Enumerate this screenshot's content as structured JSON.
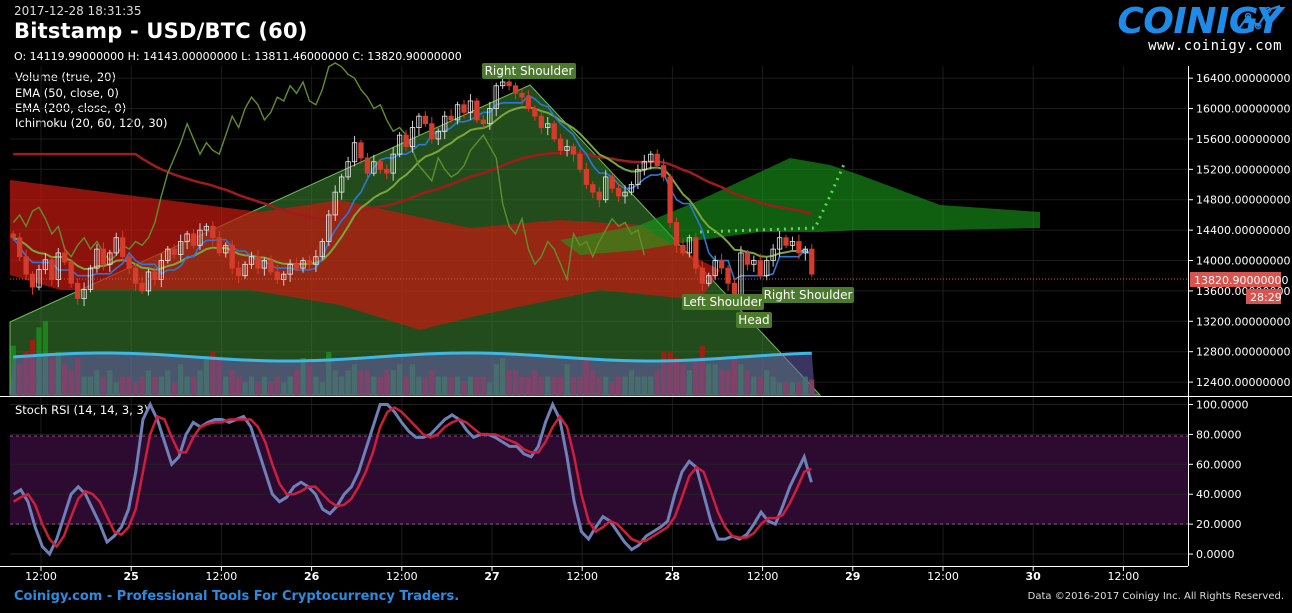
{
  "header": {
    "timestamp": "2017-12-28 18:31:35",
    "title": "Bitstamp - USD/BTC (60)",
    "ohlc": "O: 14119.99000000 H: 14143.00000000 L: 13811.46000000 C: 13820.90000000",
    "indicators": [
      "Volume (true, 20)",
      "EMA (50, close, 0)",
      "EMA (200, close, 0)",
      "Ichimoku (20, 60, 120, 30)"
    ]
  },
  "logo": {
    "text": "COINIGY",
    "url": "www.coinigy.com"
  },
  "footer": {
    "tagline": "Coinigy.com - Professional Tools For Cryptocurrency Traders.",
    "copyright": "Data ©2016-2017 Coinigy Inc. All Rights Reserved."
  },
  "colors": {
    "up": "#2ea84a",
    "down": "#d63c2b",
    "ema50": "#7aa63c",
    "ema200": "#a01c1c",
    "stoch_k": "#6f7fb8",
    "stoch_d": "#cc1f3e",
    "axis_label_price": "#d9534f"
  },
  "chart_data": [
    {
      "type": "candlestick",
      "title": "Bitstamp - USD/BTC (60)",
      "ylim": [
        12230,
        16560
      ],
      "y_ticks": [
        "16400.00000000",
        "16000.00000000",
        "15600.00000000",
        "15200.00000000",
        "14800.00000000",
        "14400.00000000",
        "14000.00000000",
        "13600.00000000",
        "13200.00000000",
        "12800.00000000",
        "12400.00000000"
      ],
      "x_ticks": [
        "12:00",
        "25",
        "12:00",
        "26",
        "12:00",
        "27",
        "12:00",
        "28",
        "12:00",
        "29",
        "12:00",
        "30",
        "12:00"
      ],
      "last_price": "13820.90000000",
      "countdown": "28:29",
      "annotations": [
        "Right Shoulder",
        "Left Shoulder",
        "Head",
        "Right Shoulder"
      ],
      "close": [
        14300,
        14050,
        13820,
        13650,
        13880,
        14010,
        13750,
        14100,
        13980,
        13700,
        13500,
        13620,
        13900,
        14150,
        13950,
        14100,
        14300,
        14050,
        13900,
        13700,
        13600,
        13850,
        13750,
        14000,
        14150,
        14080,
        14250,
        14350,
        14200,
        14400,
        14450,
        14300,
        14100,
        14200,
        13900,
        13800,
        13950,
        14050,
        13900,
        14000,
        13850,
        13750,
        13820,
        13950,
        13900,
        14000,
        13950,
        14050,
        14250,
        14600,
        14900,
        15100,
        15300,
        15550,
        15350,
        15150,
        15300,
        15200,
        15150,
        15400,
        15650,
        15500,
        15750,
        15900,
        15800,
        15600,
        15700,
        15900,
        15850,
        16050,
        15950,
        16100,
        15850,
        15800,
        16000,
        16300,
        16350,
        16300,
        16200,
        16150,
        16000,
        15900,
        15750,
        15800,
        15600,
        15450,
        15500,
        15400,
        15200,
        15000,
        14900,
        14800,
        15100,
        14950,
        14850,
        14900,
        15000,
        15200,
        15300,
        15400,
        15250,
        15100,
        14500,
        14200,
        14100,
        14300,
        13900,
        13700,
        13800,
        14000,
        13900,
        13700,
        13500,
        14100,
        13950,
        14000,
        13800,
        14000,
        14150,
        14300,
        14200,
        14250,
        14100,
        14150,
        13821
      ],
      "volume": [
        800,
        500,
        700,
        900,
        1100,
        1200,
        600,
        700,
        500,
        400,
        600,
        300,
        300,
        400,
        300,
        400,
        200,
        300,
        300,
        200,
        300,
        400,
        300,
        300,
        400,
        200,
        500,
        300,
        300,
        400,
        600,
        700,
        600,
        300,
        400,
        300,
        200,
        300,
        200,
        300,
        200,
        300,
        200,
        300,
        400,
        600,
        500,
        300,
        200,
        700,
        400,
        300,
        400,
        500,
        400,
        400,
        300,
        300,
        400,
        400,
        500,
        300,
        500,
        300,
        300,
        400,
        300,
        300,
        300,
        300,
        200,
        300,
        300,
        300,
        200,
        500,
        600,
        400,
        400,
        300,
        300,
        400,
        300,
        300,
        300,
        300,
        500,
        300,
        300,
        600,
        400,
        300,
        300,
        200,
        300,
        300,
        400,
        300,
        300,
        300,
        400,
        700,
        700,
        600,
        500,
        400,
        600,
        800,
        500,
        500,
        400,
        400,
        600,
        500,
        400,
        300,
        300,
        400,
        300,
        200,
        200,
        200,
        200,
        300,
        250
      ]
    },
    {
      "type": "line",
      "title": "Stoch RSI (14, 14, 3, 3)",
      "ylim": [
        -8,
        103
      ],
      "y_ticks": [
        "100.0000",
        "80.0000",
        "60.0000",
        "40.0000",
        "20.0000",
        "0.0000"
      ],
      "series": [
        {
          "name": "K",
          "values": [
            40,
            43,
            35,
            18,
            5,
            0,
            10,
            25,
            40,
            45,
            40,
            30,
            20,
            8,
            12,
            18,
            30,
            55,
            90,
            100,
            90,
            75,
            60,
            65,
            80,
            88,
            85,
            88,
            90,
            90,
            88,
            90,
            92,
            85,
            70,
            55,
            40,
            35,
            38,
            45,
            48,
            45,
            40,
            30,
            27,
            32,
            40,
            45,
            55,
            70,
            85,
            100,
            100,
            95,
            88,
            82,
            78,
            78,
            80,
            85,
            90,
            93,
            90,
            83,
            78,
            80,
            80,
            78,
            75,
            72,
            72,
            67,
            65,
            72,
            88,
            100,
            90,
            65,
            35,
            15,
            10,
            18,
            25,
            22,
            15,
            8,
            3,
            6,
            12,
            15,
            18,
            22,
            40,
            55,
            62,
            58,
            40,
            22,
            10,
            10,
            12,
            10,
            13,
            20,
            28,
            22,
            20,
            32,
            45,
            55,
            65,
            48
          ]
        },
        {
          "name": "D",
          "values": [
            35,
            38,
            40,
            33,
            20,
            10,
            5,
            12,
            25,
            37,
            42,
            40,
            35,
            25,
            15,
            13,
            18,
            30,
            55,
            80,
            92,
            90,
            78,
            68,
            68,
            78,
            85,
            87,
            88,
            88,
            90,
            90,
            90,
            90,
            85,
            75,
            60,
            47,
            40,
            40,
            42,
            45,
            45,
            40,
            35,
            32,
            33,
            37,
            45,
            55,
            68,
            85,
            95,
            98,
            95,
            90,
            85,
            80,
            78,
            80,
            85,
            88,
            90,
            88,
            84,
            80,
            80,
            80,
            78,
            76,
            74,
            70,
            68,
            68,
            75,
            85,
            92,
            85,
            65,
            40,
            22,
            15,
            18,
            22,
            20,
            15,
            10,
            8,
            9,
            12,
            15,
            18,
            25,
            38,
            52,
            58,
            55,
            42,
            28,
            18,
            12,
            11,
            11,
            14,
            20,
            24,
            24,
            26,
            34,
            44,
            55,
            57
          ]
        }
      ]
    }
  ]
}
